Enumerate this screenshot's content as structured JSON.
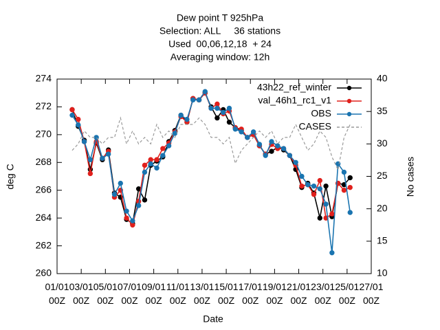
{
  "chart_data": {
    "type": "line",
    "title": [
      "Dew point T 925hPa",
      "Selection: ALL     36 stations",
      "Used  00,06,12,18  + 24",
      "Averaging window: 12h"
    ],
    "xlabel": "Date",
    "ylabel": "deg C",
    "y2label": "No cases",
    "x": [
      1.25,
      1.75,
      2.25,
      2.75,
      3.25,
      3.75,
      4.25,
      4.75,
      5.25,
      5.75,
      6.25,
      6.75,
      7.25,
      7.75,
      8.25,
      8.75,
      9.25,
      9.75,
      10.25,
      10.75,
      11.25,
      11.75,
      12.25,
      12.75,
      13.25,
      13.75,
      14.25,
      14.75,
      15.25,
      15.75,
      16.25,
      16.75,
      17.25,
      17.75,
      18.25,
      18.75,
      19.25,
      19.75,
      20.25,
      20.75,
      21.25,
      21.75,
      22.25,
      22.75,
      23.25,
      23.75,
      24.25
    ],
    "xlim": [
      0,
      26
    ],
    "xticks": [
      {
        "value": 0,
        "label": "01/01 00Z"
      },
      {
        "value": 2,
        "label": "03/01 00Z"
      },
      {
        "value": 4,
        "label": "05/01 00Z"
      },
      {
        "value": 6,
        "label": "07/01 00Z"
      },
      {
        "value": 8,
        "label": "09/01 00Z"
      },
      {
        "value": 10,
        "label": "11/01 00Z"
      },
      {
        "value": 12,
        "label": "13/01 00Z"
      },
      {
        "value": 14,
        "label": "15/01 00Z"
      },
      {
        "value": 16,
        "label": "17/01 00Z"
      },
      {
        "value": 18,
        "label": "19/01 00Z"
      },
      {
        "value": 20,
        "label": "21/01 00Z"
      },
      {
        "value": 22,
        "label": "23/01 00Z"
      },
      {
        "value": 24,
        "label": "25/01 00Z"
      },
      {
        "value": 26,
        "label": "27/01 00Z"
      }
    ],
    "ylim": [
      260,
      274
    ],
    "yticks": [
      260,
      262,
      264,
      266,
      268,
      270,
      272,
      274
    ],
    "y2lim": [
      10,
      40
    ],
    "y2ticks": [
      10,
      15,
      20,
      25,
      30,
      35,
      40
    ],
    "legend": "top-right",
    "grid": false,
    "series": [
      {
        "name": "43h22_ref_winter",
        "color": "#000000",
        "marker": true,
        "values": [
          271.8,
          270.6,
          269.6,
          267.5,
          269.4,
          268.2,
          268.9,
          265.8,
          265.5,
          263.9,
          263.6,
          266.1,
          265.3,
          267.8,
          268.1,
          268.4,
          269.5,
          270.3,
          271.4,
          270.9,
          272.6,
          272.5,
          273.0,
          272.0,
          271.2,
          271.8,
          270.9,
          270.5,
          270.3,
          269.8,
          270.0,
          269.2,
          268.6,
          268.8,
          269.1,
          268.9,
          268.5,
          267.5,
          266.2,
          266.5,
          265.8,
          264.0,
          266.3,
          264.1,
          266.5,
          266.4,
          266.9
        ]
      },
      {
        "name": "val_46h1_rc1_v1",
        "color": "#e0201c",
        "marker": true,
        "values": [
          271.8,
          271.1,
          269.5,
          267.2,
          269.5,
          268.3,
          268.8,
          265.5,
          266.0,
          264.0,
          263.5,
          265.2,
          267.8,
          268.2,
          268.2,
          269.0,
          269.4,
          270.2,
          271.3,
          270.9,
          272.6,
          272.5,
          273.0,
          271.9,
          272.2,
          271.5,
          271.7,
          270.5,
          270.4,
          269.8,
          270.0,
          269.2,
          268.6,
          269.3,
          269.0,
          269.0,
          268.5,
          267.8,
          266.3,
          266.4,
          265.7,
          266.7,
          264.0,
          264.3,
          266.5,
          266.0,
          266.2
        ]
      },
      {
        "name": "OBS",
        "color": "#1a74b0",
        "marker": true,
        "values": [
          271.4,
          270.7,
          269.5,
          268.2,
          269.8,
          268.3,
          268.6,
          265.7,
          266.5,
          264.5,
          263.8,
          264.9,
          267.3,
          267.9,
          267.6,
          268.5,
          269.2,
          270.1,
          271.4,
          271.1,
          272.5,
          272.5,
          273.1,
          271.9,
          271.9,
          271.6,
          271.9,
          270.4,
          270.2,
          269.8,
          270.2,
          269.3,
          268.5,
          269.5,
          269.2,
          269.0,
          268.5,
          268.0,
          267.0,
          266.4,
          266.3,
          266.1,
          265.0,
          261.5,
          267.9,
          267.3,
          264.4
        ]
      },
      {
        "name": "CASES",
        "color": "#999999",
        "marker": false,
        "dashed": true,
        "axis": "y2",
        "values": [
          29,
          30,
          32,
          31,
          31,
          30,
          31,
          31,
          34,
          30,
          32,
          30,
          31,
          30,
          33,
          31,
          32,
          31,
          33,
          33,
          33,
          34,
          33,
          31,
          31,
          30,
          31,
          27,
          29,
          30,
          31,
          32,
          31,
          32,
          30,
          31,
          31,
          33,
          31,
          29,
          30,
          32,
          31,
          28,
          26,
          31,
          33
        ]
      }
    ]
  }
}
